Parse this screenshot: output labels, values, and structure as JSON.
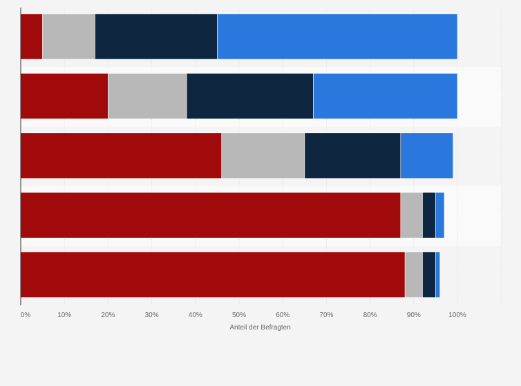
{
  "chart_data": {
    "type": "bar",
    "orientation": "horizontal",
    "stacked": true,
    "categories": [
      "",
      "",
      "",
      "",
      ""
    ],
    "series": [
      {
        "color": "#a10a0a",
        "values": [
          5,
          20,
          46,
          87,
          88
        ]
      },
      {
        "color": "#b8b8b8",
        "values": [
          12,
          18,
          19,
          5,
          4
        ]
      },
      {
        "color": "#0f2640",
        "values": [
          28,
          29,
          22,
          3,
          3
        ]
      },
      {
        "color": "#2a78dd",
        "values": [
          55,
          33,
          12,
          2,
          1
        ]
      }
    ],
    "x_ticks": [
      "0%",
      "10%",
      "20%",
      "30%",
      "40%",
      "50%",
      "60%",
      "70%",
      "80%",
      "90%",
      "100%"
    ],
    "xlabel": "Anteil der Befragten",
    "xlim": [
      0,
      110
    ],
    "grid": true
  }
}
